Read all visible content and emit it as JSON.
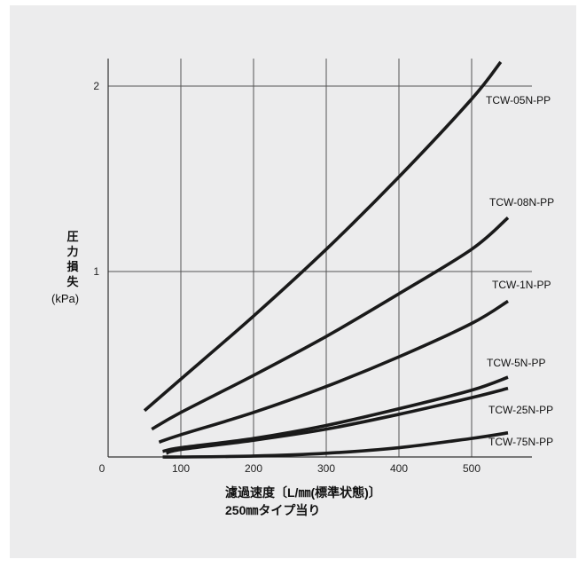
{
  "chart_data": {
    "type": "line",
    "xlabel": "濾過速度〔L/㎜(標準状態)〕",
    "xlabel_sub": "250㎜タイプ当り",
    "ylabel_chars": [
      "圧",
      "力",
      "損",
      "失"
    ],
    "ylabel_unit": "(kPa)",
    "x_origin_label": "0",
    "x_ticks": [
      100,
      200,
      300,
      400,
      500
    ],
    "y_ticks": [
      1,
      2
    ],
    "xlim": [
      0,
      550
    ],
    "ylim": [
      0,
      2.15
    ],
    "grid": true,
    "series": [
      {
        "name": "TCW-05N-PP",
        "x": [
          50,
          100,
          200,
          300,
          400,
          500,
          540
        ],
        "y": [
          0.25,
          0.42,
          0.76,
          1.12,
          1.51,
          1.93,
          2.13
        ]
      },
      {
        "name": "TCW-08N-PP",
        "x": [
          60,
          100,
          200,
          300,
          400,
          500,
          550
        ],
        "y": [
          0.15,
          0.24,
          0.44,
          0.65,
          0.88,
          1.12,
          1.29
        ]
      },
      {
        "name": "TCW-1N-PP",
        "x": [
          70,
          100,
          200,
          300,
          400,
          500,
          550
        ],
        "y": [
          0.08,
          0.12,
          0.24,
          0.38,
          0.54,
          0.72,
          0.84
        ]
      },
      {
        "name": "TCW-5N-PP",
        "x": [
          75,
          100,
          200,
          300,
          400,
          500,
          550
        ],
        "y": [
          0.03,
          0.05,
          0.1,
          0.17,
          0.26,
          0.36,
          0.43
        ]
      },
      {
        "name": "TCW-25N-PP",
        "x": [
          80,
          100,
          200,
          300,
          400,
          500,
          550
        ],
        "y": [
          0.02,
          0.04,
          0.09,
          0.15,
          0.23,
          0.32,
          0.37
        ]
      },
      {
        "name": "TCW-75N-PP",
        "x": [
          75,
          100,
          200,
          300,
          400,
          500,
          550
        ],
        "y": [
          0.0,
          0.0,
          0.005,
          0.02,
          0.05,
          0.1,
          0.13
        ]
      }
    ],
    "colors": {
      "line": "#1a1a1a",
      "grid": "#555555",
      "background": "#ececed"
    }
  }
}
